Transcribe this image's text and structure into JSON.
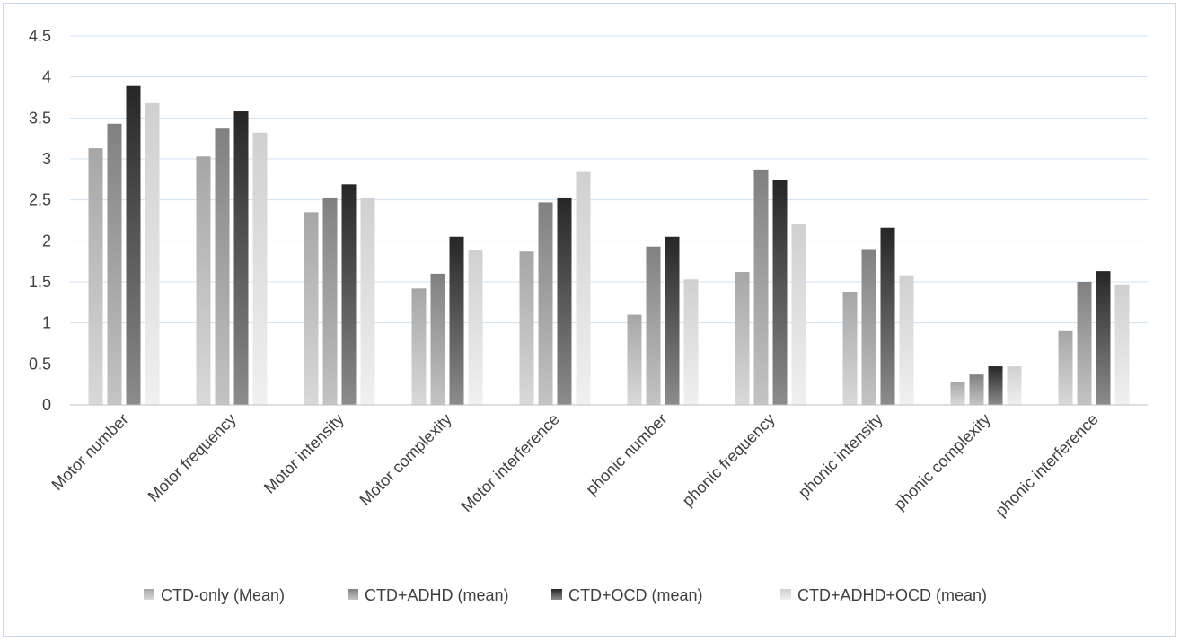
{
  "chart_data": {
    "type": "bar",
    "title": "",
    "xlabel": "",
    "ylabel": "",
    "ylim": [
      0,
      4.5
    ],
    "ytick_step": 0.5,
    "yticks": [
      "0",
      "0.5",
      "1",
      "1.5",
      "2",
      "2.5",
      "3",
      "3.5",
      "4",
      "4.5"
    ],
    "grid": true,
    "legend_position": "bottom",
    "categories": [
      "Motor number",
      "Motor frequency",
      "Motor intensity",
      "Motor complexity",
      "Motor interference",
      "phonic number",
      "phonic frequency",
      "phonic intensity",
      "phonic complexity",
      "phonic interference"
    ],
    "series": [
      {
        "name": "CTD-only (Mean)",
        "color_top": "#a6a6a6",
        "color_bottom": "#d9d9d9",
        "values": [
          3.13,
          3.03,
          2.35,
          1.42,
          1.87,
          1.1,
          1.62,
          1.38,
          0.28,
          0.9
        ]
      },
      {
        "name": "CTD+ADHD (mean)",
        "color_top": "#808080",
        "color_bottom": "#c4c4c4",
        "values": [
          3.43,
          3.37,
          2.53,
          1.6,
          2.47,
          1.93,
          2.87,
          1.9,
          0.37,
          1.5
        ]
      },
      {
        "name": "CTD+OCD (mean)",
        "color_top": "#262626",
        "color_bottom": "#8c8c8c",
        "values": [
          3.89,
          3.58,
          2.69,
          2.05,
          2.53,
          2.05,
          2.74,
          2.16,
          0.47,
          1.63
        ]
      },
      {
        "name": "CTD+ADHD+OCD (mean)",
        "color_top": "#d0d0d0",
        "color_bottom": "#f0f0f0",
        "values": [
          3.68,
          3.32,
          2.53,
          1.89,
          2.84,
          1.53,
          2.21,
          1.58,
          0.47,
          1.47
        ]
      }
    ]
  },
  "colors": {
    "grid": "#cfe0f0",
    "axis": "#bfbfbf",
    "frame": "#c9d9ea",
    "text": "#404040"
  }
}
